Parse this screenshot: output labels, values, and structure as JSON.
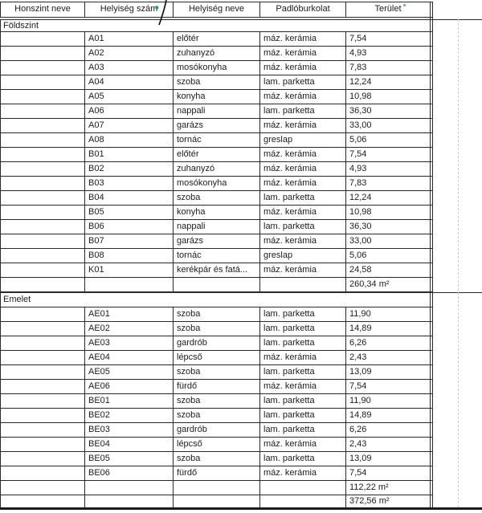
{
  "table": {
    "columns": [
      "Honszint neve",
      "Helyiség szám",
      "Helyiség neve",
      "Padlóburkolat",
      "Terület"
    ],
    "sections": [
      {
        "label": "Földszint",
        "rows": [
          {
            "num": "A01",
            "name": "előtér",
            "floor": "máz. kerámia",
            "area": "7,54"
          },
          {
            "num": "A02",
            "name": "zuhanyzó",
            "floor": "máz. kerámia",
            "area": "4,93"
          },
          {
            "num": "A03",
            "name": "mosókonyha",
            "floor": "máz. kerámia",
            "area": "7,83"
          },
          {
            "num": "A04",
            "name": "szoba",
            "floor": "lam. parketta",
            "area": "12,24"
          },
          {
            "num": "A05",
            "name": "konyha",
            "floor": "máz. kerámia",
            "area": "10,98"
          },
          {
            "num": "A06",
            "name": "nappali",
            "floor": "lam. parketta",
            "area": "36,30"
          },
          {
            "num": "A07",
            "name": "garázs",
            "floor": "máz. kerámia",
            "area": "33,00"
          },
          {
            "num": "A08",
            "name": "tornác",
            "floor": "greslap",
            "area": "5,06"
          },
          {
            "num": "B01",
            "name": "előtér",
            "floor": "máz. kerámia",
            "area": "7,54"
          },
          {
            "num": "B02",
            "name": "zuhanyzó",
            "floor": "máz. kerámia",
            "area": "4,93"
          },
          {
            "num": "B03",
            "name": "mosókonyha",
            "floor": "máz. kerámia",
            "area": "7,83"
          },
          {
            "num": "B04",
            "name": "szoba",
            "floor": "lam. parketta",
            "area": "12,24"
          },
          {
            "num": "B05",
            "name": "konyha",
            "floor": "máz. kerámia",
            "area": "10,98"
          },
          {
            "num": "B06",
            "name": "nappali",
            "floor": "lam. parketta",
            "area": "36,30"
          },
          {
            "num": "B07",
            "name": "garázs",
            "floor": "máz. kerámia",
            "area": "33,00"
          },
          {
            "num": "B08",
            "name": "tornác",
            "floor": "greslap",
            "area": "5,06"
          },
          {
            "num": "K01",
            "name": "kerékpár és fatá...",
            "floor": "máz. kerámia",
            "area": "24,58"
          }
        ],
        "subtotal": "260,34 m²"
      },
      {
        "label": "Emelet",
        "rows": [
          {
            "num": "AE01",
            "name": "szoba",
            "floor": "lam. parketta",
            "area": "11,90"
          },
          {
            "num": "AE02",
            "name": "szoba",
            "floor": "lam. parketta",
            "area": "14,89"
          },
          {
            "num": "AE03",
            "name": "gardrób",
            "floor": "lam. parketta",
            "area": "6,26"
          },
          {
            "num": "AE04",
            "name": "lépcső",
            "floor": "máz. kerámia",
            "area": "2,43"
          },
          {
            "num": "AE05",
            "name": "szoba",
            "floor": "lam. parketta",
            "area": "13,09"
          },
          {
            "num": "AE06",
            "name": "fürdő",
            "floor": "máz. kerámia",
            "area": "7,54"
          },
          {
            "num": "BE01",
            "name": "szoba",
            "floor": "lam. parketta",
            "area": "11,90"
          },
          {
            "num": "BE02",
            "name": "szoba",
            "floor": "lam. parketta",
            "area": "14,89"
          },
          {
            "num": "BE03",
            "name": "gardrób",
            "floor": "lam. parketta",
            "area": "6,26"
          },
          {
            "num": "BE04",
            "name": "lépcső",
            "floor": "máz. kerámia",
            "area": "2,43"
          },
          {
            "num": "BE05",
            "name": "szoba",
            "floor": "lam. parketta",
            "area": "13,09"
          },
          {
            "num": "BE06",
            "name": "fürdő",
            "floor": "máz. kerámia",
            "area": "7,54"
          }
        ],
        "subtotal": "112,22 m²"
      }
    ],
    "grand_total": "372,56 m²"
  },
  "colors": {
    "border": "#2a2a2a",
    "text": "#1c1c1c",
    "cursor_line": "#111111",
    "selection_handle_green": "#2c8c6a",
    "guide_dash": "#cfcfcf"
  }
}
